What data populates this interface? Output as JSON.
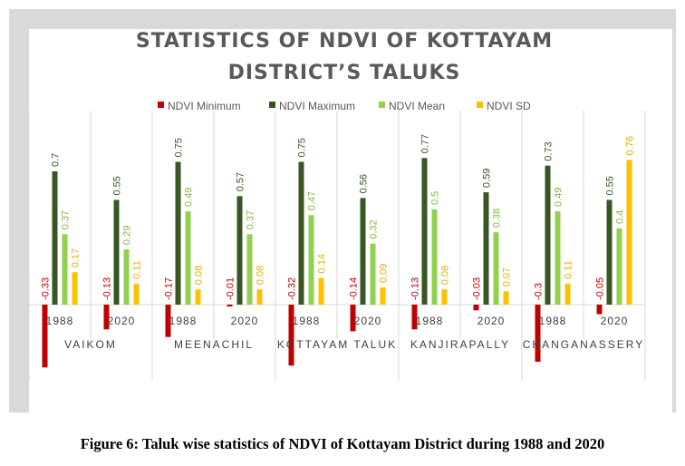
{
  "caption": "Figure 6: Taluk wise statistics of NDVI of Kottayam District during 1988 and 2020",
  "chart_data": {
    "type": "bar",
    "title_lines": [
      "STATISTICS OF NDVI OF KOTTAYAM",
      "DISTRICT’S TALUKS"
    ],
    "groups": [
      {
        "name": "VAIKOM",
        "years": [
          "1988",
          "2020"
        ]
      },
      {
        "name": "MEENACHIL",
        "years": [
          "1988",
          "2020"
        ]
      },
      {
        "name": "KOTTAYAM TALUK",
        "years": [
          "1988",
          "2020"
        ]
      },
      {
        "name": "KANJIRAPALLY",
        "years": [
          "1988",
          "2020"
        ]
      },
      {
        "name": "CHANGANASSERY",
        "years": [
          "1988",
          "2020"
        ]
      }
    ],
    "series": [
      {
        "name": "NDVI Minimum",
        "color": "#c00000",
        "values": [
          -0.33,
          -0.13,
          -0.17,
          -0.01,
          -0.32,
          -0.14,
          -0.13,
          -0.03,
          -0.3,
          -0.05
        ]
      },
      {
        "name": "NDVI Maximum",
        "color": "#375623",
        "values": [
          0.7,
          0.55,
          0.75,
          0.57,
          0.75,
          0.56,
          0.77,
          0.59,
          0.73,
          0.55
        ]
      },
      {
        "name": "NDVI Mean",
        "color": "#92d050",
        "values": [
          0.37,
          0.29,
          0.49,
          0.37,
          0.47,
          0.32,
          0.5,
          0.38,
          0.49,
          0.4
        ]
      },
      {
        "name": "NDVI SD",
        "color": "#ffc000",
        "values": [
          0.17,
          0.11,
          0.08,
          0.08,
          0.14,
          0.09,
          0.08,
          0.07,
          0.11,
          0.76
        ]
      }
    ],
    "legend_position": "top",
    "grid": false
  }
}
